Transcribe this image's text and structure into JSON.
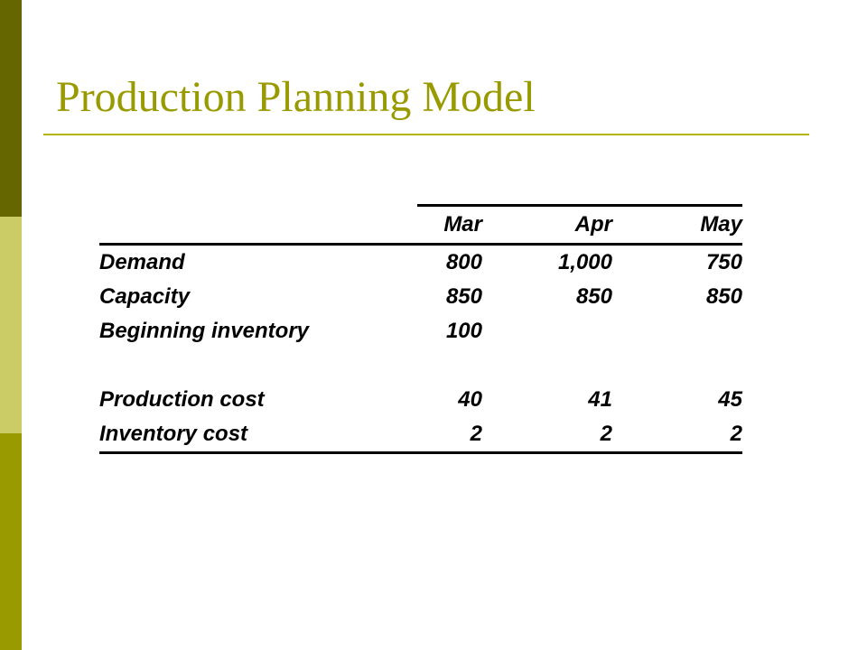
{
  "slide": {
    "title": "Production Planning Model",
    "colors": {
      "title": "#999900",
      "rule": "#b3b300",
      "bar_top": "#666600",
      "bar_mid": "#cccc66",
      "bar_bottom": "#999900",
      "table_text": "#000000"
    }
  },
  "table": {
    "columns": [
      "Mar",
      "Apr",
      "May"
    ],
    "rows": [
      {
        "label": "Demand",
        "values": [
          "800",
          "1,000",
          "750"
        ]
      },
      {
        "label": "Capacity",
        "values": [
          "850",
          "850",
          "850"
        ]
      },
      {
        "label": "Beginning inventory",
        "values": [
          "100",
          "",
          ""
        ]
      },
      {
        "label": "Production cost",
        "values": [
          "40",
          "41",
          "45"
        ]
      },
      {
        "label": "Inventory cost",
        "values": [
          "2",
          "2",
          "2"
        ]
      }
    ]
  }
}
